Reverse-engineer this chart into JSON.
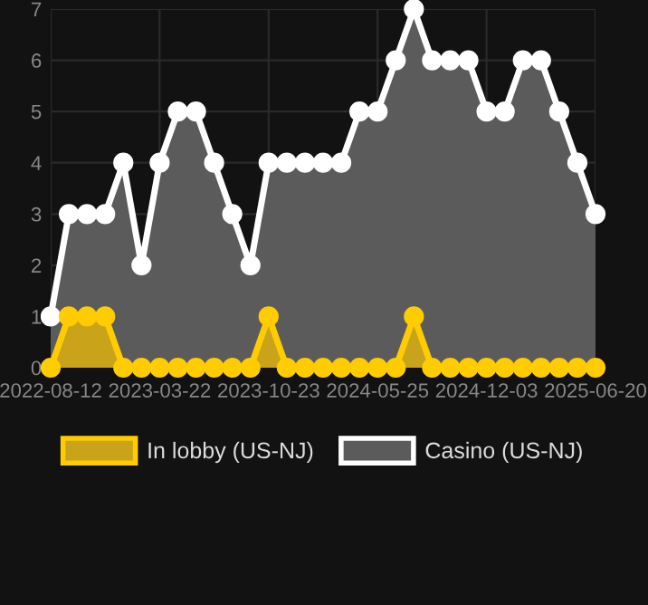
{
  "chart_data": {
    "type": "area",
    "categories": [
      "2022-08-12",
      null,
      null,
      null,
      null,
      null,
      "2023-03-22",
      null,
      null,
      null,
      null,
      null,
      "2023-10-23",
      null,
      null,
      null,
      null,
      null,
      "2024-05-25",
      null,
      null,
      null,
      null,
      null,
      "2024-12-03",
      null,
      null,
      null,
      null,
      null,
      "2025-06-20"
    ],
    "series": [
      {
        "name": "In lobby (US-NJ)",
        "color": "#ffcc00",
        "values": [
          0,
          1,
          1,
          1,
          0,
          0,
          0,
          0,
          0,
          0,
          0,
          0,
          1,
          0,
          0,
          0,
          0,
          0,
          0,
          0,
          1,
          0,
          0,
          0,
          0,
          0,
          0,
          0,
          0,
          0,
          0
        ]
      },
      {
        "name": "Casino (US-NJ)",
        "color": "#ffffff",
        "values": [
          1,
          3,
          3,
          3,
          4,
          2,
          4,
          5,
          5,
          4,
          3,
          2,
          4,
          4,
          4,
          4,
          4,
          5,
          5,
          6,
          7,
          6,
          6,
          6,
          5,
          5,
          6,
          6,
          5,
          4,
          3
        ]
      }
    ],
    "ylim": [
      0,
      7
    ],
    "yticks": [
      0,
      1,
      2,
      3,
      4,
      5,
      6,
      7
    ],
    "grid": true,
    "legend": "bottom",
    "marker": "circle",
    "line_style": "solid"
  }
}
